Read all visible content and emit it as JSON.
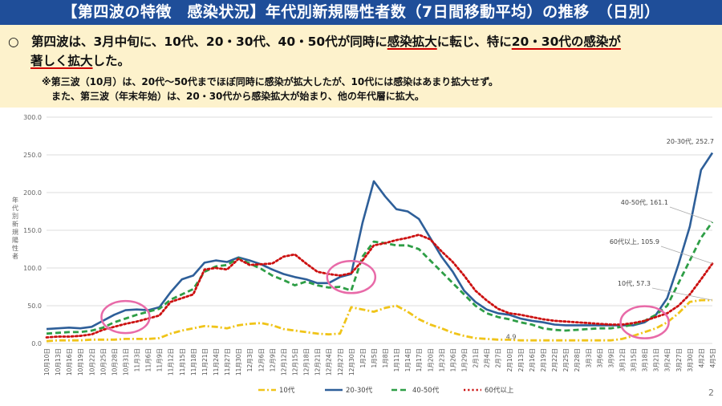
{
  "header": {
    "title": "【第四波の特徴　感染状況】年代別新規陽性者数（7日間移動平均）の推移　（日別）"
  },
  "summary": {
    "line1_bullet": "○　第四波は、3月中旬に、10代、20・30代、40・50代が同時に",
    "line1_u1": "感染拡大",
    "line1_mid": "に転じ、特に",
    "line1_u2": "20・30代の感染が",
    "line2_u": "著しく拡大",
    "line2_end": "した。",
    "note1": "※第三波（10月）は、20代～50代までほぼ同時に感染が拡大したが、10代には感染はあまり拡大せず。",
    "note2": "また、第三波（年末年始）は、20・30代から感染拡大が始まり、他の年代層に拡大。"
  },
  "page_number": "2",
  "chart_data": {
    "type": "line",
    "ylabel": "年代別新規陽性者",
    "ylim": [
      0,
      300
    ],
    "yticks": [
      "0.0",
      "50.0",
      "100.0",
      "150.0",
      "200.0",
      "250.0",
      "300.0"
    ],
    "grid": true,
    "legend_position": "bottom",
    "categories": [
      "10月10日",
      "10月13日",
      "10月16日",
      "10月19日",
      "10月22日",
      "10月25日",
      "10月28日",
      "10月31日",
      "11月3日",
      "11月6日",
      "11月9日",
      "11月12日",
      "11月15日",
      "11月18日",
      "11月21日",
      "11月24日",
      "11月27日",
      "11月30日",
      "12月3日",
      "12月6日",
      "12月9日",
      "12月12日",
      "12月15日",
      "12月18日",
      "12月21日",
      "12月24日",
      "12月27日",
      "12月30日",
      "1月2日",
      "1月5日",
      "1月8日",
      "1月11日",
      "1月14日",
      "1月17日",
      "1月20日",
      "1月23日",
      "1月26日",
      "1月29日",
      "2月1日",
      "2月4日",
      "2月7日",
      "2月10日",
      "2月13日",
      "2月16日",
      "2月19日",
      "2月22日",
      "2月25日",
      "2月28日",
      "3月3日",
      "3月6日",
      "3月9日",
      "3月12日",
      "3月15日",
      "3月18日",
      "3月21日",
      "3月24日",
      "3月27日",
      "3月30日",
      "4月2日",
      "4月5日"
    ],
    "series": [
      {
        "name": "10代",
        "color": "#f0c419",
        "dash": "dashdot",
        "values": [
          3,
          4,
          4,
          4,
          5,
          5,
          5,
          6,
          6,
          6,
          7,
          13,
          17,
          20,
          23,
          22,
          20,
          24,
          26,
          27,
          24,
          19,
          17,
          15,
          13,
          12,
          13,
          48,
          45,
          42,
          47,
          50,
          42,
          32,
          25,
          20,
          14,
          10,
          7,
          6,
          5,
          4.9,
          4,
          4,
          4,
          4,
          4,
          4,
          4,
          4,
          4,
          6,
          10,
          15,
          20,
          28,
          40,
          55,
          57.3,
          57.3
        ]
      },
      {
        "name": "20-30代",
        "color": "#2e5f99",
        "dash": "solid",
        "values": [
          19,
          20,
          21,
          20,
          22,
          30,
          38,
          44,
          45,
          44,
          48,
          68,
          85,
          90,
          107,
          110,
          108,
          114,
          110,
          105,
          98,
          92,
          88,
          85,
          80,
          80,
          88,
          92,
          160,
          215,
          195,
          178,
          175,
          165,
          140,
          115,
          95,
          70,
          55,
          45,
          40,
          38,
          33,
          30,
          28,
          25,
          24,
          24,
          24,
          24,
          24,
          24,
          24,
          28,
          38,
          60,
          105,
          155,
          230,
          252.7
        ]
      },
      {
        "name": "40-50代",
        "color": "#2e9e46",
        "dash": "dashed",
        "values": [
          13,
          14,
          15,
          15,
          17,
          21,
          28,
          33,
          38,
          42,
          46,
          58,
          65,
          72,
          95,
          102,
          104,
          113,
          106,
          99,
          90,
          84,
          77,
          82,
          77,
          74,
          75,
          70,
          115,
          135,
          133,
          130,
          130,
          125,
          110,
          95,
          80,
          65,
          50,
          40,
          35,
          32,
          28,
          25,
          20,
          18,
          17,
          18,
          19,
          20,
          20,
          22,
          25,
          30,
          38,
          50,
          80,
          110,
          140,
          161.1
        ]
      },
      {
        "name": "60代以上",
        "color": "#cc1010",
        "dash": "dotted",
        "values": [
          8,
          9,
          9,
          10,
          12,
          18,
          22,
          26,
          29,
          33,
          37,
          55,
          60,
          65,
          98,
          100,
          98,
          112,
          104,
          105,
          106,
          115,
          118,
          106,
          95,
          92,
          90,
          93,
          110,
          130,
          133,
          137,
          140,
          144,
          138,
          122,
          108,
          90,
          70,
          57,
          46,
          40,
          38,
          35,
          32,
          30,
          29,
          28,
          27,
          26,
          25,
          25,
          27,
          30,
          35,
          40,
          50,
          65,
          85,
          105.9
        ]
      }
    ],
    "end_labels": [
      {
        "series": "20-30代",
        "text": "20-30代, 252.7"
      },
      {
        "series": "40-50代",
        "text": "40-50代, 161.1"
      },
      {
        "series": "60代以上",
        "text": "60代以上, 105.9"
      },
      {
        "series": "10代",
        "text": "10代, 57.3"
      }
    ],
    "annotations": [
      {
        "text": "4.9",
        "category": "2月10日",
        "value": 4.9
      }
    ],
    "highlight_circles": [
      {
        "category": "10月31日",
        "value": 35
      },
      {
        "category": "12月30日",
        "value": 88
      },
      {
        "category": "3月18日",
        "value": 28
      }
    ],
    "highlight_color": "#e86aa8"
  }
}
